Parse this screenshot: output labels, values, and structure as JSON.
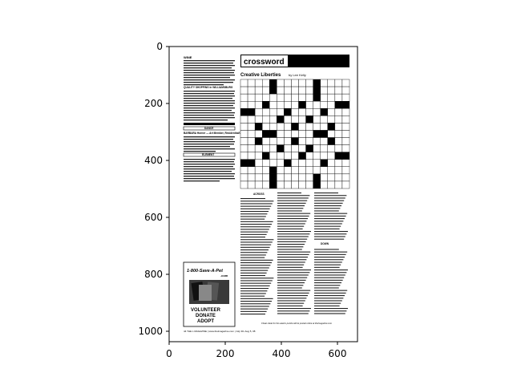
{
  "axes": {
    "xticks": [
      "0",
      "200",
      "400",
      "600"
    ],
    "yticks": [
      "0",
      "200",
      "400",
      "600",
      "800",
      "1000"
    ]
  },
  "page": {
    "left_column": {
      "heading_wine": "WINE",
      "heading_quality": "QUALITY SHOPPING in WILLIAMSBURG",
      "section_bar": "DANCE",
      "heading_barbara": "BARBARA Horner — Art Member, Residential/Commercial",
      "section_bar2": "ELEMENT",
      "ad_phone": "1-800-Save-A-Pet",
      "ad_domain": ".com",
      "ad_line1": "VOLUNTEER",
      "ad_line2": "DONATE",
      "ad_line3": "ADOPT"
    },
    "crossword": {
      "banner": "crossword",
      "title": "Creative Liberties",
      "byline": "by Lee Kelly",
      "across_label": "ACROSS",
      "down_label": "DOWN",
      "footer_note": "Cheat sheet for this week's puzzle will be posted online at thelmagazine.com"
    },
    "footer": "44   THE L MAGAZINE | www.thelmagazine.com | July 30–Aug 5, 08"
  }
}
